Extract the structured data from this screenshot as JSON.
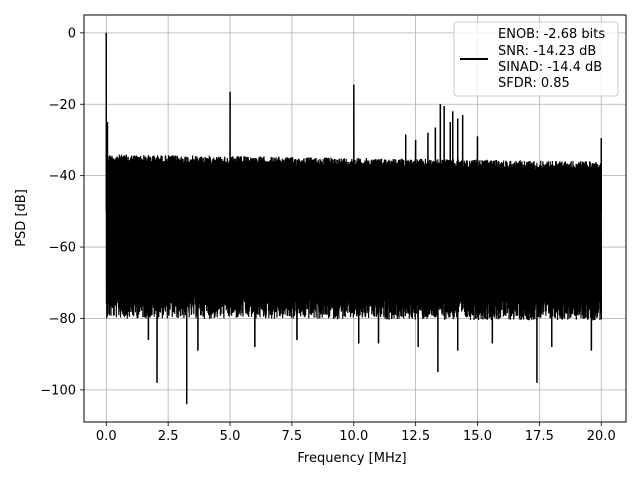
{
  "chart_data": {
    "type": "line",
    "xlabel": "Frequency [MHz]",
    "ylabel": "PSD [dB]",
    "xlim": [
      -0.9,
      21.0
    ],
    "ylim": [
      -109,
      5
    ],
    "grid": true,
    "xticks": [
      0.0,
      2.5,
      5.0,
      7.5,
      10.0,
      12.5,
      15.0,
      17.5,
      20.0
    ],
    "xtick_labels": [
      "0.0",
      "2.5",
      "5.0",
      "7.5",
      "10.0",
      "12.5",
      "15.0",
      "17.5",
      "20.0"
    ],
    "yticks": [
      0,
      -20,
      -40,
      -60,
      -80,
      -100
    ],
    "ytick_labels": [
      "0",
      "−20",
      "−40",
      "−60",
      "−80",
      "−100"
    ],
    "legend_position": "top-right",
    "legend": [
      "ENOB: -2.68 bits",
      "SNR: -14.23 dB",
      "SINAD: -14.4 dB",
      "SFDR: 0.85"
    ],
    "series": [
      {
        "color": "#000000",
        "x_start": 0.0,
        "x_end": 20.0,
        "noise_top_db": -34,
        "noise_bottom_db": -78,
        "spurs": [
          {
            "x": 0.0,
            "y": 0
          },
          {
            "x": 0.05,
            "y": -25
          },
          {
            "x": 5.0,
            "y": -16.5
          },
          {
            "x": 10.0,
            "y": -14.5
          },
          {
            "x": 12.1,
            "y": -28.5
          },
          {
            "x": 12.5,
            "y": -30
          },
          {
            "x": 13.0,
            "y": -28
          },
          {
            "x": 13.3,
            "y": -26.5
          },
          {
            "x": 13.5,
            "y": -20
          },
          {
            "x": 13.65,
            "y": -20.5
          },
          {
            "x": 13.9,
            "y": -25
          },
          {
            "x": 14.0,
            "y": -22
          },
          {
            "x": 14.2,
            "y": -24
          },
          {
            "x": 14.4,
            "y": -23
          },
          {
            "x": 15.0,
            "y": -29
          },
          {
            "x": 20.0,
            "y": -29.5
          }
        ],
        "dips": [
          {
            "x": 2.05,
            "y": -98
          },
          {
            "x": 3.25,
            "y": -104
          },
          {
            "x": 13.4,
            "y": -95
          },
          {
            "x": 17.4,
            "y": -98
          },
          {
            "x": 1.7,
            "y": -86
          },
          {
            "x": 3.7,
            "y": -89
          },
          {
            "x": 6.0,
            "y": -88
          },
          {
            "x": 7.7,
            "y": -86
          },
          {
            "x": 10.2,
            "y": -87
          },
          {
            "x": 11.0,
            "y": -87
          },
          {
            "x": 12.6,
            "y": -88
          },
          {
            "x": 14.2,
            "y": -89
          },
          {
            "x": 15.6,
            "y": -87
          },
          {
            "x": 18.0,
            "y": -88
          },
          {
            "x": 19.6,
            "y": -89
          }
        ]
      }
    ]
  }
}
